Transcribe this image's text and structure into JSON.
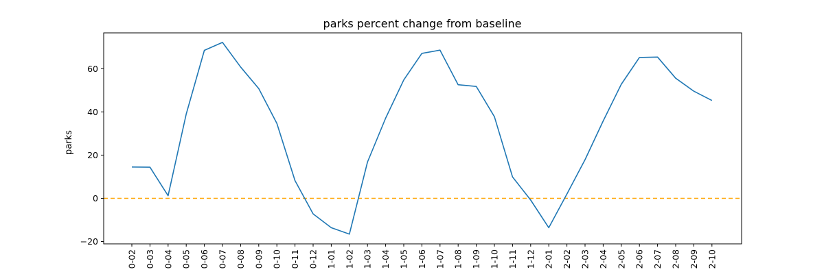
{
  "chart_data": {
    "type": "line",
    "title": "parks percent change from baseline",
    "xlabel": "",
    "ylabel": "parks",
    "categories": [
      "0-02",
      "0-03",
      "0-04",
      "0-05",
      "0-06",
      "0-07",
      "0-08",
      "0-09",
      "0-10",
      "0-11",
      "0-12",
      "1-01",
      "1-02",
      "1-03",
      "1-04",
      "1-05",
      "1-06",
      "1-07",
      "1-08",
      "1-09",
      "1-10",
      "1-11",
      "1-12",
      "2-01",
      "2-02",
      "2-03",
      "2-04",
      "2-05",
      "2-06",
      "2-07",
      "2-08",
      "2-09",
      "2-10"
    ],
    "series": [
      {
        "color": "#1f77b4",
        "values": [
          14.5,
          14.4,
          1.2,
          39.0,
          68.5,
          72.2,
          60.8,
          50.8,
          34.7,
          8.2,
          -7.2,
          -13.6,
          -16.6,
          16.8,
          37.1,
          54.8,
          67.1,
          68.6,
          52.6,
          51.8,
          37.8,
          9.9,
          -0.8,
          -13.6,
          2.0,
          17.9,
          35.8,
          52.8,
          65.2,
          65.4,
          55.6,
          49.6,
          45.3
        ]
      }
    ],
    "reference_line": {
      "y": 0,
      "color": "#ffa500",
      "style": "dashed"
    },
    "yticks": [
      -20,
      0,
      20,
      40,
      60
    ],
    "ylim": [
      -21.1,
      76.6
    ],
    "grid": false,
    "legend": "none"
  }
}
